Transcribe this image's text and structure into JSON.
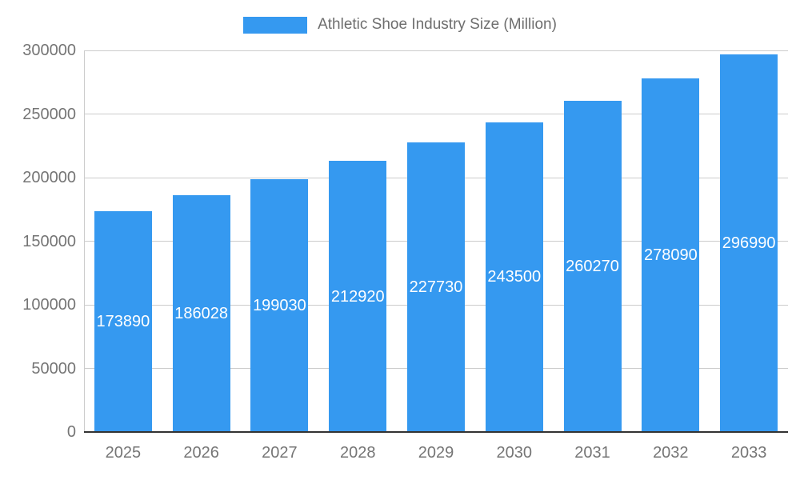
{
  "chart_data": {
    "type": "bar",
    "title": "Athletic Shoe Industry Size (Million)",
    "categories": [
      "2025",
      "2026",
      "2027",
      "2028",
      "2029",
      "2030",
      "2031",
      "2032",
      "2033"
    ],
    "values": [
      173890,
      186028,
      199030,
      212920,
      227730,
      243500,
      260270,
      278090,
      296990
    ],
    "value_labels": [
      "173890",
      "186028",
      "199030",
      "212920",
      "227730",
      "243500",
      "260270",
      "278090",
      "296990"
    ],
    "xlabel": "",
    "ylabel": "",
    "ylim": [
      0,
      300000
    ],
    "yticks": [
      0,
      50000,
      100000,
      150000,
      200000,
      250000,
      300000
    ],
    "grid": true,
    "legend_position": "top",
    "colors": {
      "bar": "#3599f0",
      "axis_text": "#757575",
      "gridline": "#cccccc",
      "baseline": "#333333",
      "value_label": "#ffffff",
      "legend_text": "#6e6e6e"
    }
  }
}
